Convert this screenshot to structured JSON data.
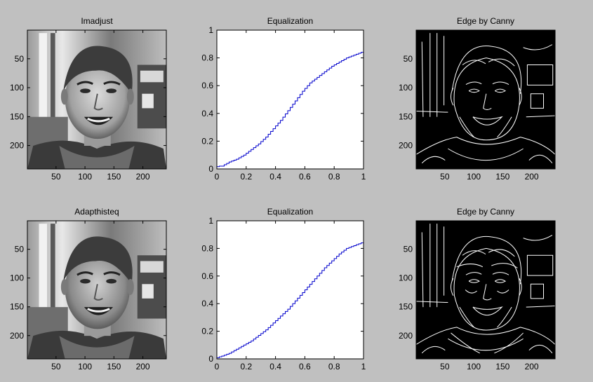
{
  "figure": {
    "background": "#c0c0c0",
    "axes_frame_color": "#000000",
    "curve_color": "#0000cc"
  },
  "chart_data": [
    {
      "type": "image",
      "title": "Imadjust",
      "content": "grayscale face photo (contrast-adjusted)",
      "xticks": [
        50,
        100,
        150,
        200
      ],
      "yticks": [
        50,
        100,
        150,
        200
      ],
      "xlim": [
        0.5,
        240.5
      ],
      "ylim": [
        0.5,
        240.5
      ]
    },
    {
      "type": "line",
      "title": "Equalization",
      "xlim": [
        0,
        1
      ],
      "ylim": [
        0,
        1
      ],
      "xticks": [
        "0",
        "0.2",
        "0.4",
        "0.6",
        "0.8",
        "1"
      ],
      "yticks": [
        "0",
        "0.2",
        "0.4",
        "0.6",
        "0.8",
        "1"
      ],
      "x": [
        0,
        0.02,
        0.05,
        0.1,
        0.15,
        0.2,
        0.25,
        0.3,
        0.35,
        0.4,
        0.45,
        0.5,
        0.55,
        0.6,
        0.65,
        0.7,
        0.75,
        0.8,
        0.85,
        0.9,
        0.95,
        1.0,
        1.0
      ],
      "y": [
        0,
        0.02,
        0.02,
        0.05,
        0.07,
        0.1,
        0.14,
        0.18,
        0.23,
        0.29,
        0.35,
        0.42,
        0.49,
        0.56,
        0.62,
        0.66,
        0.7,
        0.74,
        0.77,
        0.8,
        0.82,
        0.84,
        0.92
      ]
    },
    {
      "type": "image",
      "title": "Edge by Canny",
      "content": "binary edge map (white edges on black)",
      "xticks": [
        50,
        100,
        150,
        200
      ],
      "yticks": [
        50,
        100,
        150,
        200
      ],
      "xlim": [
        0.5,
        240.5
      ],
      "ylim": [
        0.5,
        240.5
      ]
    },
    {
      "type": "image",
      "title": "Adapthisteq",
      "content": "grayscale face photo (adaptive histogram equalized)",
      "xticks": [
        50,
        100,
        150,
        200
      ],
      "yticks": [
        50,
        100,
        150,
        200
      ],
      "xlim": [
        0.5,
        240.5
      ],
      "ylim": [
        0.5,
        240.5
      ]
    },
    {
      "type": "line",
      "title": "Equalization",
      "xlim": [
        0,
        1
      ],
      "ylim": [
        0,
        1
      ],
      "xticks": [
        "0",
        "0.2",
        "0.4",
        "0.6",
        "0.8",
        "1"
      ],
      "yticks": [
        "0",
        "0.2",
        "0.4",
        "0.6",
        "0.8",
        "1"
      ],
      "x": [
        0,
        0.02,
        0.05,
        0.1,
        0.15,
        0.2,
        0.25,
        0.3,
        0.35,
        0.4,
        0.45,
        0.5,
        0.55,
        0.6,
        0.65,
        0.7,
        0.75,
        0.8,
        0.85,
        0.9,
        0.95,
        1.0,
        1.0
      ],
      "y": [
        0,
        0.01,
        0.02,
        0.04,
        0.07,
        0.1,
        0.13,
        0.17,
        0.21,
        0.26,
        0.31,
        0.36,
        0.42,
        0.48,
        0.54,
        0.6,
        0.66,
        0.71,
        0.76,
        0.8,
        0.82,
        0.84,
        0.92
      ]
    },
    {
      "type": "image",
      "title": "Edge by Canny",
      "content": "binary edge map (white edges on black)",
      "xticks": [
        50,
        100,
        150,
        200
      ],
      "yticks": [
        50,
        100,
        150,
        200
      ],
      "xlim": [
        0.5,
        240.5
      ],
      "ylim": [
        0.5,
        240.5
      ]
    }
  ]
}
